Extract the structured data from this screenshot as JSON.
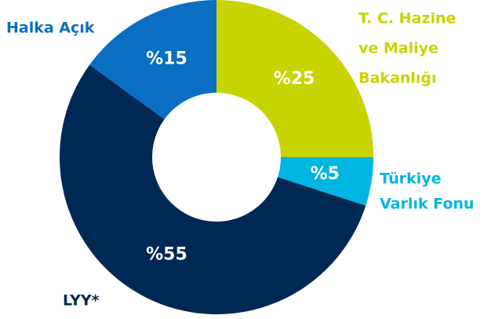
{
  "chart_data": {
    "type": "donut",
    "categories": [
      [
        "T. C. Hazine",
        "ve Maliye",
        "Bakanlığı"
      ],
      [
        "Türkiye",
        "Varlık Fonu"
      ],
      [
        "LYY*"
      ],
      [
        "Halka Açık"
      ]
    ],
    "values": [
      25,
      5,
      55,
      15
    ],
    "value_labels": [
      "%25",
      "%5",
      "%55",
      "%15"
    ],
    "colors": [
      "#c8d400",
      "#00b5e2",
      "#002855",
      "#0a6fc2"
    ]
  }
}
